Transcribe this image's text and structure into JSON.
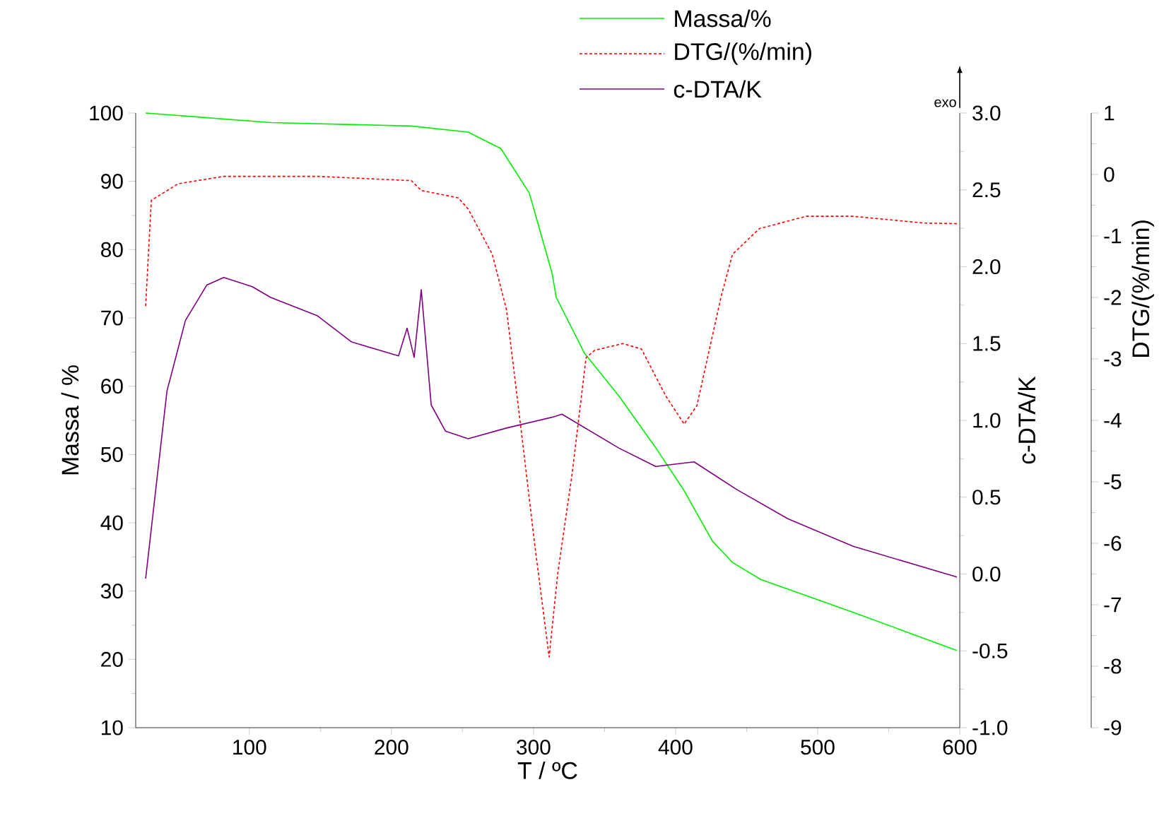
{
  "chart_data": {
    "type": "line",
    "xlabel": "T / ºC",
    "ylabel": "Massa / %",
    "y2label": "c-DTA/K",
    "y3label": "DTG/(%/min)",
    "xlim": [
      20,
      600
    ],
    "xticks": [
      100,
      200,
      300,
      400,
      500,
      600
    ],
    "ylim": [
      10,
      100
    ],
    "yticks": [
      10,
      20,
      30,
      40,
      50,
      60,
      70,
      80,
      90,
      100
    ],
    "y2lim": [
      -1,
      3
    ],
    "y2ticks": [
      {
        "value": -1,
        "label": "-1.0"
      },
      {
        "value": -0.5,
        "label": "-0.5"
      },
      {
        "value": 0,
        "label": "0.0"
      },
      {
        "value": 0.5,
        "label": "0.5"
      },
      {
        "value": 1,
        "label": "1.0"
      },
      {
        "value": 1.5,
        "label": "1.5"
      },
      {
        "value": 2,
        "label": "2.0"
      },
      {
        "value": 2.5,
        "label": "2.5"
      },
      {
        "value": 3,
        "label": "3.0"
      }
    ],
    "y3lim": [
      -9,
      1
    ],
    "y3ticks": [
      -9,
      -8,
      -7,
      -6,
      -5,
      -4,
      -3,
      -2,
      -1,
      0,
      1
    ],
    "legend": "top",
    "marker": "none",
    "annotations": [
      "exo"
    ],
    "series": [
      {
        "name": "Massa/%",
        "color": "#00ee00",
        "line_style": "solid",
        "x": [
          27,
          115,
          214,
          254,
          277,
          297,
          313,
          316,
          336,
          360,
          386,
          406,
          426,
          440,
          460,
          525,
          598
        ],
        "values": [
          100,
          98.6,
          98.1,
          97.2,
          94.8,
          88.3,
          76.6,
          73,
          64.8,
          58.6,
          51,
          44.7,
          37.3,
          34.2,
          31.7,
          26.9,
          21.3
        ]
      },
      {
        "name": "DTG/(%/min)",
        "color": "#ff0000",
        "line_style": "dotted",
        "axis": "y3",
        "x": [
          27,
          31,
          50,
          82,
          148,
          214,
          221,
          247,
          254,
          271,
          281,
          291,
          301,
          311,
          317,
          327,
          337,
          343,
          363,
          376,
          393,
          406,
          415,
          432,
          440,
          459,
          492,
          525,
          575,
          598
        ],
        "values": [
          -2.14,
          -0.42,
          -0.15,
          -0.03,
          -0.03,
          -0.1,
          -0.26,
          -0.38,
          -0.56,
          -1.3,
          -2.2,
          -4.1,
          -6.05,
          -7.85,
          -6.5,
          -4.9,
          -2.98,
          -2.86,
          -2.75,
          -2.84,
          -3.6,
          -4.06,
          -3.76,
          -1.99,
          -1.3,
          -0.88,
          -0.68,
          -0.68,
          -0.79,
          -0.8
        ]
      },
      {
        "name": "c-DTA/K",
        "color": "#800080",
        "line_style": "solid",
        "axis": "y2",
        "x": [
          27,
          42,
          55,
          70,
          82,
          102,
          115,
          148,
          172,
          205,
          211,
          216,
          221,
          228,
          238,
          254,
          281,
          313,
          320,
          360,
          386,
          413,
          443,
          479,
          525,
          598
        ],
        "values": [
          -0.03,
          1.19,
          1.65,
          1.88,
          1.93,
          1.87,
          1.8,
          1.68,
          1.51,
          1.42,
          1.6,
          1.41,
          1.85,
          1.1,
          0.93,
          0.88,
          0.95,
          1.02,
          1.04,
          0.82,
          0.7,
          0.73,
          0.55,
          0.36,
          0.18,
          -0.02
        ]
      }
    ]
  }
}
